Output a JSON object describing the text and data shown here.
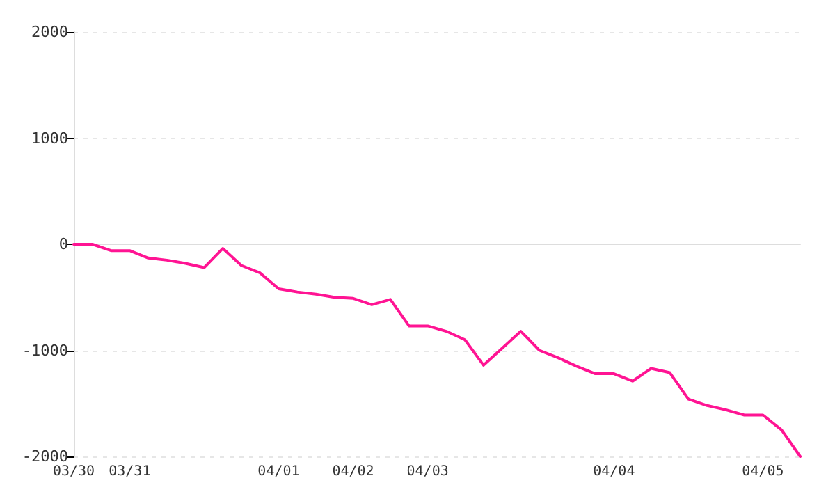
{
  "chart_data": {
    "type": "line",
    "categories": [
      "03/30",
      null,
      null,
      "03/31",
      null,
      null,
      null,
      null,
      null,
      null,
      null,
      "04/01",
      null,
      null,
      null,
      "04/02",
      null,
      null,
      null,
      "04/03",
      null,
      null,
      null,
      null,
      null,
      null,
      null,
      null,
      null,
      "04/04",
      null,
      null,
      null,
      null,
      null,
      null,
      null,
      "04/05",
      null,
      null
    ],
    "series": [
      {
        "color": "#ff1493",
        "values": [
          0,
          0,
          -60,
          -60,
          -130,
          -150,
          -180,
          -220,
          -40,
          -200,
          -270,
          -420,
          -450,
          -470,
          -500,
          -510,
          -570,
          -520,
          -770,
          -770,
          -820,
          -900,
          -1140,
          -980,
          -820,
          -1000,
          -1070,
          -1150,
          -1220,
          -1220,
          -1290,
          -1170,
          -1210,
          -1460,
          -1520,
          -1560,
          -1610,
          -1610,
          -1750,
          -2000
        ]
      }
    ],
    "ylim": [
      -2000,
      2000
    ],
    "yticks": [
      -2000,
      -1000,
      0,
      1000,
      2000
    ],
    "grid": "y",
    "marker": "none",
    "line_style": "solid"
  }
}
